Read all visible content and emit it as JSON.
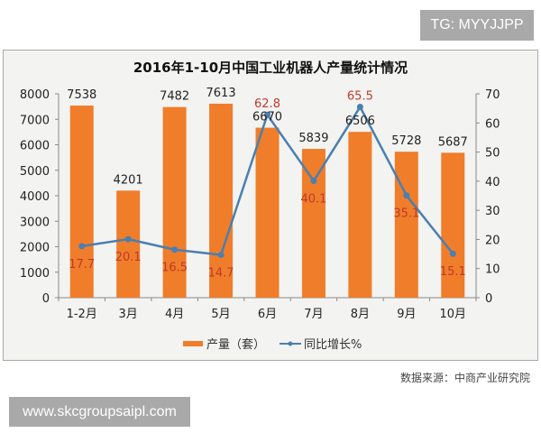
{
  "badge_top": "TG: MYYJJPP",
  "badge_bottom": "www.skcgroupsaipl.com",
  "source": "数据来源：中商产业研究院",
  "chart_data": {
    "type": "bar+line",
    "title": "2016年1-10月中国工业机器人产量统计情况",
    "categories": [
      "1-2月",
      "3月",
      "4月",
      "5月",
      "6月",
      "7月",
      "8月",
      "9月",
      "10月"
    ],
    "series": [
      {
        "name": "产量（套）",
        "type": "bar",
        "axis": "left",
        "color": "#f07d2a",
        "values": [
          7538,
          4201,
          7482,
          7613,
          6670,
          5839,
          6506,
          5728,
          5687
        ]
      },
      {
        "name": "同比增长%",
        "type": "line",
        "axis": "right",
        "color": "#4a7fb0",
        "values": [
          17.7,
          20.1,
          16.5,
          14.7,
          62.8,
          40.1,
          65.5,
          35.1,
          15.1
        ]
      }
    ],
    "y_left": {
      "range": [
        0,
        8000
      ],
      "ticks": [
        0,
        1000,
        2000,
        3000,
        4000,
        5000,
        6000,
        7000,
        8000
      ]
    },
    "y_right": {
      "range": [
        0,
        70
      ],
      "ticks": [
        0,
        10,
        20,
        30,
        40,
        50,
        60,
        70
      ]
    },
    "grid": false,
    "legend": "bottom"
  }
}
